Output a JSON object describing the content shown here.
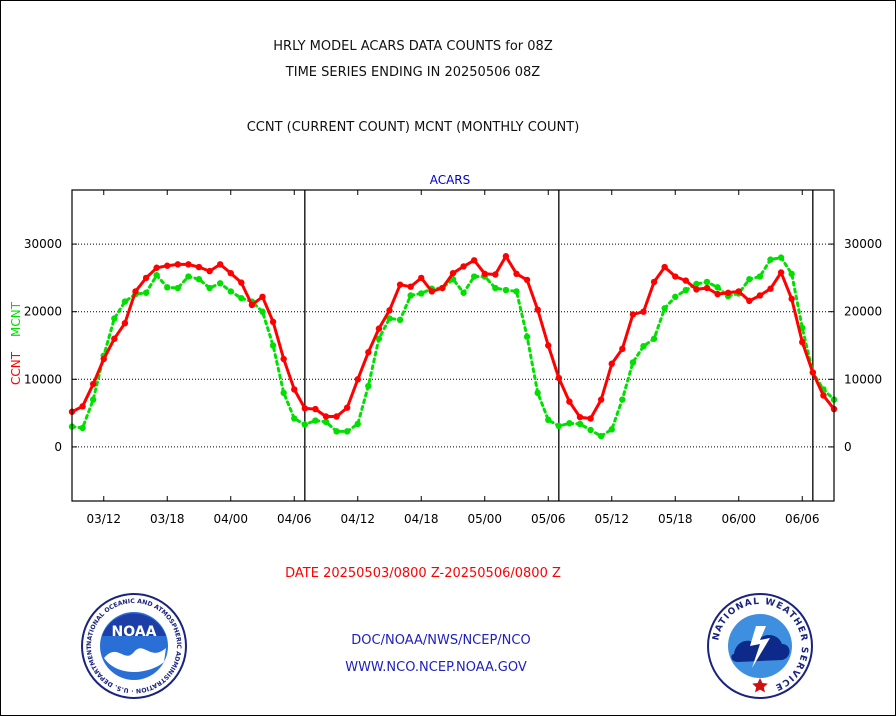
{
  "header": {
    "title_line1": "HRLY MODEL ACARS DATA COUNTS for 08Z",
    "title_line2": "TIME SERIES ENDING IN 20250506 08Z",
    "subtitle": "CCNT (CURRENT COUNT) MCNT (MONTHLY COUNT)"
  },
  "footer": {
    "date_range": "DATE 20250503/0800 Z-20250506/0800 Z",
    "link1": "DOC/NOAA/NWS/NCEP/NCO",
    "link2": "WWW.NCO.NCEP.NOAA.GOV",
    "noaa_logo_text": "NOAA",
    "noaa_ring_text": "NATIONAL OCEANIC AND ATMOSPHERIC ADMINISTRATION · U.S. DEPARTMENT OF COMMERCE ·",
    "nws_ring_text": "NATIONAL WEATHER SERVICE"
  },
  "colors": {
    "ccnt": "#ff0000",
    "mcnt": "#00e000",
    "panel_label": "#0000cc",
    "date_text": "#ff0000",
    "links": "#2020c0"
  },
  "chart_data": {
    "type": "line",
    "title": "ACARS",
    "ylabel_ccnt": "CCNT",
    "ylabel_mcnt": "MCNT",
    "ylim": [
      -8000,
      38000
    ],
    "xlim": [
      0,
      72
    ],
    "y_ticks": [
      0,
      10000,
      20000,
      30000
    ],
    "y_tick_labels": [
      "0",
      "10000",
      "20000",
      "30000"
    ],
    "x_ticks": [
      3,
      9,
      15,
      21,
      27,
      33,
      39,
      45,
      51,
      57,
      63,
      69
    ],
    "x_tick_labels": [
      "03/12",
      "03/18",
      "04/00",
      "04/06",
      "04/12",
      "04/18",
      "05/00",
      "05/06",
      "05/12",
      "05/18",
      "06/00",
      "06/06"
    ],
    "day_boundaries": [
      22,
      46,
      70
    ],
    "grid_y": true,
    "series": [
      {
        "name": "CCNT",
        "color": "#ff0000",
        "values": [
          5200,
          6000,
          9300,
          13000,
          16000,
          18300,
          23000,
          25000,
          26500,
          26800,
          27000,
          27000,
          26600,
          26000,
          27000,
          25700,
          24300,
          21000,
          22200,
          18500,
          13000,
          8500,
          5700,
          5600,
          4500,
          4500,
          5800,
          10000,
          14000,
          17500,
          20200,
          24000,
          23700,
          25000,
          23000,
          23500,
          25700,
          26700,
          27600,
          25600,
          25500,
          28200,
          25600,
          24700,
          20300,
          15000,
          10200,
          6700,
          4400,
          4200,
          7000,
          12300,
          14500,
          19600,
          20000,
          24400,
          26600,
          25200,
          24600,
          23300,
          23500,
          22600,
          22800,
          23000,
          21600,
          22400,
          23400,
          25800,
          21900,
          15500,
          11000,
          7600,
          5600
        ]
      },
      {
        "name": "MCNT",
        "color": "#00e000",
        "values": [
          3000,
          2800,
          7000,
          13500,
          19000,
          21500,
          22600,
          22800,
          25400,
          23600,
          23500,
          25200,
          24800,
          23500,
          24200,
          23000,
          22000,
          21500,
          20000,
          15000,
          8000,
          4200,
          3300,
          3900,
          3700,
          2300,
          2300,
          3400,
          9000,
          16000,
          19000,
          18800,
          22400,
          22700,
          23400,
          23500,
          24800,
          22800,
          25200,
          25200,
          23500,
          23200,
          23000,
          16300,
          8000,
          4000,
          3100,
          3500,
          3400,
          2500,
          1600,
          2600,
          7000,
          12500,
          14900,
          16000,
          20500,
          22200,
          23200,
          24100,
          24400,
          23600,
          22300,
          22700,
          24800,
          25200,
          27700,
          28000,
          25600,
          17600,
          11000,
          8500,
          7000
        ]
      }
    ]
  }
}
